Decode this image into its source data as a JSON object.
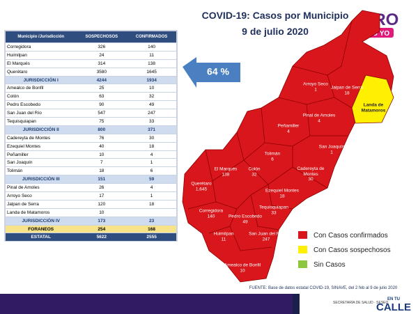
{
  "header": {
    "title": "COVID-19: Casos por Municipio",
    "date": "9 de julio 2020",
    "logo": "QRO",
    "logo_sub": "TÚ YO"
  },
  "callout": "64 %",
  "table": {
    "header": [
      "Municipio /Jurisdicción",
      "SOSPECHOSOS",
      "CONFIRMADOS"
    ],
    "jurisdictions": [
      {
        "municipalities": [
          [
            "Corregidora",
            326,
            140
          ],
          [
            "Huimilpan",
            24,
            11
          ],
          [
            "El Marqués",
            314,
            138
          ],
          [
            "Querétaro",
            3580,
            1645
          ]
        ],
        "total": [
          "JURISDICCIÓN I",
          4244,
          1934
        ]
      },
      {
        "municipalities": [
          [
            "Amealco de Bonfil",
            25,
            10
          ],
          [
            "Colón",
            63,
            32
          ],
          [
            "Pedro Escobedo",
            90,
            49
          ],
          [
            "San Juan del Río",
            547,
            247
          ],
          [
            "Tequisquiapan",
            75,
            33
          ]
        ],
        "total": [
          "JURISDICCIÓN II",
          800,
          371
        ]
      },
      {
        "municipalities": [
          [
            "Cadereyta de Montes",
            76,
            30
          ],
          [
            "Ezequiel Montes",
            40,
            18
          ],
          [
            "Peñamiller",
            10,
            4
          ],
          [
            "San Joaquín",
            7,
            1
          ],
          [
            "Tolimán",
            18,
            6
          ]
        ],
        "total": [
          "JURISDICCIÓN III",
          151,
          59
        ]
      },
      {
        "municipalities": [
          [
            "Pinal de Amoles",
            26,
            4
          ],
          [
            "Arroyo Seco",
            17,
            1
          ],
          [
            "Jalpan de Serra",
            120,
            18
          ],
          [
            "Landa de Matamoros",
            10
          ]
        ],
        "total": [
          "JURISDICCIÓN IV",
          173,
          23
        ]
      }
    ],
    "foraneos": [
      "FORANEOS",
      254,
      168
    ],
    "state": [
      "ESTATAL",
      5622,
      2555
    ]
  },
  "map": {
    "labels": [
      [
        "Arroyo Seco",
        "1"
      ],
      [
        "Jalpan de Serra",
        "18"
      ],
      [
        "Landa de Matamoros"
      ],
      [
        "Pinal de Amoles",
        "4"
      ],
      [
        "Peñamiller",
        "4"
      ],
      [
        "San Joaquín",
        "1"
      ],
      [
        "Tolimán",
        "6"
      ],
      [
        "Cadereyta de Montes",
        "30"
      ],
      [
        "El Marqués",
        "138"
      ],
      [
        "Colón",
        "32"
      ],
      [
        "Querétaro",
        "1,645"
      ],
      [
        "Ezequiel Montes",
        "18"
      ],
      [
        "Tequisquiapan",
        "33"
      ],
      [
        "Corregidora",
        "140"
      ],
      [
        "Pedro Escobedo",
        "49"
      ],
      [
        "San Juan del Río",
        "247"
      ],
      [
        "Huimilpan",
        "11"
      ],
      [
        "Amealco de Bonfil",
        "10"
      ]
    ]
  },
  "legend": [
    "Con Casos confirmados",
    "Con Casos sospechosos",
    "Sin Casos"
  ],
  "source": "FUENTE: Base de datos estatal COVID-19, SINAVE, del 2 feb al 9 de julio 2020",
  "footer": {
    "agency": "SECRETARÍA DE SALUD · SESEQ",
    "campaign_top": "EN TU",
    "campaign": "CALLE"
  }
}
